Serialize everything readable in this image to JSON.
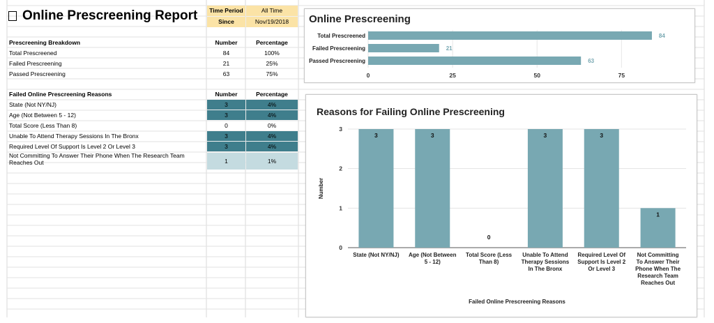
{
  "report_title": "Online Prescreening Report",
  "title_icon": "checkbox-icon",
  "period": {
    "time_period_label": "Time Period",
    "time_period_value": "All Time",
    "since_label": "Since",
    "since_value": "Nov/19/2018",
    "header_color": "#fbe3a6"
  },
  "breakdown": {
    "header": "Prescreening Breakdown",
    "col_number": "Number",
    "col_percentage": "Percentage",
    "rows": [
      {
        "label": "Total Prescreened",
        "number": "84",
        "percentage": "100%"
      },
      {
        "label": "Failed Prescreening",
        "number": "21",
        "percentage": "25%"
      },
      {
        "label": "Passed Prescreening",
        "number": "63",
        "percentage": "75%"
      }
    ]
  },
  "reasons": {
    "header": "Failed Online Prescreening Reasons",
    "col_number": "Number",
    "col_percentage": "Percentage",
    "highlight_color": "#3f7e8c",
    "light_color": "#c4dbe0",
    "rows": [
      {
        "label": "State (Not NY/NJ)",
        "number": "3",
        "percentage": "4%"
      },
      {
        "label": "Age (Not Between 5 - 12)",
        "number": "3",
        "percentage": "4%"
      },
      {
        "label": "Total Score (Less Than 8)",
        "number": "0",
        "percentage": "0%"
      },
      {
        "label": "Unable To Attend Therapy Sessions In The Bronx",
        "number": "3",
        "percentage": "4%"
      },
      {
        "label": "Required Level Of Support Is Level 2 Or Level 3",
        "number": "3",
        "percentage": "4%"
      },
      {
        "label": "Not Committing To Answer Their Phone When The Research Team Reaches Out",
        "number": "1",
        "percentage": "1%"
      }
    ]
  },
  "chart_data": [
    {
      "type": "bar",
      "orientation": "horizontal",
      "title": "Online Prescreening",
      "categories": [
        "Total Prescreened",
        "Failed Prescreening",
        "Passed Prescreening"
      ],
      "values": [
        84,
        21,
        63
      ],
      "xlim": [
        0,
        90
      ],
      "xticks": [
        "0",
        "25",
        "50",
        "75"
      ],
      "bar_color": "#78a8b2",
      "label_color": "#78a8b2"
    },
    {
      "type": "bar",
      "title": "Reasons for Failing Online Prescreening",
      "xlabel": "Failed Online Prescreening Reasons",
      "ylabel": "Number",
      "ylim": [
        0,
        3
      ],
      "yticks": [
        "0",
        "1",
        "2",
        "3"
      ],
      "categories": [
        [
          "State (Not NY/NJ)"
        ],
        [
          "Age (Not Between",
          "5 - 12)"
        ],
        [
          "Total Score (Less",
          "Than 8)"
        ],
        [
          "Unable To Attend",
          "Therapy Sessions",
          "In The Bronx"
        ],
        [
          "Required Level Of",
          "Support Is Level 2",
          "Or Level 3"
        ],
        [
          "Not Committing",
          "To Answer Their",
          "Phone When The",
          "Research Team",
          "Reaches Out"
        ]
      ],
      "values": [
        3,
        3,
        0,
        3,
        3,
        1
      ],
      "bar_color": "#78a8b2"
    }
  ]
}
